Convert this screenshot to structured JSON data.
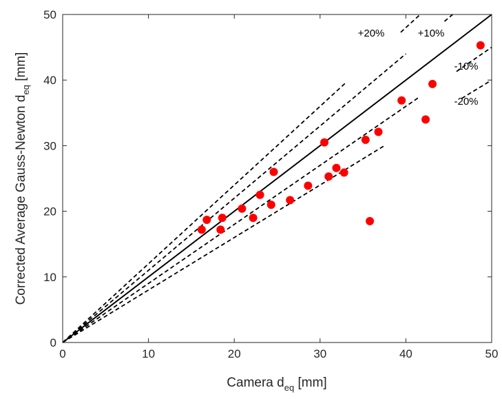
{
  "chart_data": {
    "type": "scatter",
    "title": "",
    "xlabel": {
      "main": "Camera d",
      "sub": "eq",
      "unit": " [mm]"
    },
    "ylabel": {
      "main": "Corrected Average Gauss-Newton d",
      "sub": "eq",
      "unit": " [mm]"
    },
    "xlim": [
      0,
      50
    ],
    "ylim": [
      0,
      50
    ],
    "xticks": [
      0,
      10,
      20,
      30,
      40,
      50
    ],
    "yticks": [
      0,
      10,
      20,
      30,
      40,
      50
    ],
    "grid": false,
    "marker_color": "#ff0000",
    "reference_lines": [
      {
        "name": "identity",
        "slope": 1.0,
        "style": "solid",
        "label": ""
      },
      {
        "name": "plus10",
        "slope": 1.1,
        "style": "dashed",
        "label": "+10%"
      },
      {
        "name": "plus20",
        "slope": 1.2,
        "style": "dashed",
        "label": "+20%"
      },
      {
        "name": "minus10",
        "slope": 0.9,
        "style": "dashed",
        "label": "-10%"
      },
      {
        "name": "minus20",
        "slope": 0.8,
        "style": "dashed",
        "label": "-20%"
      }
    ],
    "points": [
      {
        "x": 16.2,
        "y": 17.2
      },
      {
        "x": 16.8,
        "y": 18.7
      },
      {
        "x": 18.4,
        "y": 17.2
      },
      {
        "x": 18.6,
        "y": 19.0
      },
      {
        "x": 20.9,
        "y": 20.4
      },
      {
        "x": 22.2,
        "y": 19.0
      },
      {
        "x": 23.0,
        "y": 22.5
      },
      {
        "x": 24.3,
        "y": 21.0
      },
      {
        "x": 24.6,
        "y": 26.0
      },
      {
        "x": 26.5,
        "y": 21.7
      },
      {
        "x": 28.6,
        "y": 23.9
      },
      {
        "x": 30.5,
        "y": 30.5
      },
      {
        "x": 31.0,
        "y": 25.3
      },
      {
        "x": 31.9,
        "y": 26.6
      },
      {
        "x": 32.8,
        "y": 25.9
      },
      {
        "x": 35.3,
        "y": 30.9
      },
      {
        "x": 35.8,
        "y": 18.5
      },
      {
        "x": 36.8,
        "y": 32.1
      },
      {
        "x": 39.5,
        "y": 36.9
      },
      {
        "x": 42.3,
        "y": 34.0
      },
      {
        "x": 43.1,
        "y": 39.4
      },
      {
        "x": 48.7,
        "y": 45.3
      }
    ]
  }
}
